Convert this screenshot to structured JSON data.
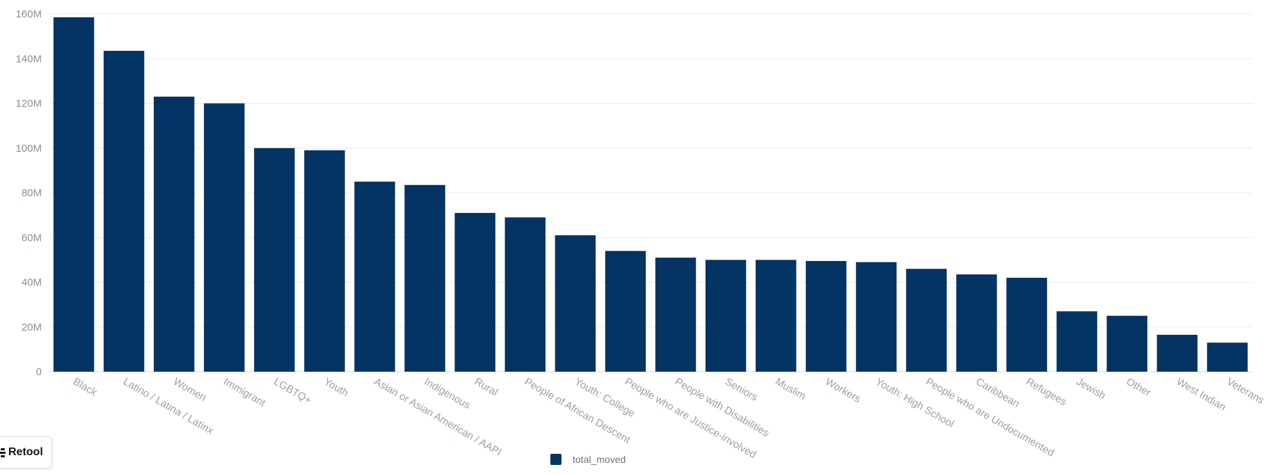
{
  "colors": {
    "bar": "#043463",
    "grid": "#ececec",
    "tick_text": "#8a8f98"
  },
  "badge": {
    "label": "Retool",
    "icon": "retool-logo-icon"
  },
  "chart_data": {
    "type": "bar",
    "title": "",
    "xlabel": "",
    "ylabel": "",
    "ylim": [
      0,
      160000000
    ],
    "yticks": [
      0,
      20000000,
      40000000,
      60000000,
      80000000,
      100000000,
      120000000,
      140000000,
      160000000
    ],
    "ytick_labels": [
      "0",
      "20M",
      "40M",
      "60M",
      "80M",
      "100M",
      "120M",
      "140M",
      "160M"
    ],
    "grid": true,
    "legend_position": "bottom-center",
    "categories": [
      "Black",
      "Latino / Latina / Latinx",
      "Women",
      "Immigrant",
      "LGBTQ+",
      "Youth",
      "Asian or Asian American / AAPI",
      "Indigenous",
      "Rural",
      "People of African Descent",
      "Youth: College",
      "People who are Justice-involved",
      "People with Disabilities",
      "Seniors",
      "Muslim",
      "Workers",
      "Youth: High School",
      "People who are Undocumented",
      "Caribbean",
      "Refugees",
      "Jewish",
      "Other",
      "West Indian",
      "Veterans"
    ],
    "series": [
      {
        "name": "total_moved",
        "values": [
          158500000,
          143500000,
          123000000,
          120000000,
          100000000,
          99000000,
          85000000,
          83500000,
          71000000,
          69000000,
          61000000,
          54000000,
          51000000,
          50000000,
          50000000,
          49500000,
          49000000,
          46000000,
          43500000,
          42000000,
          27000000,
          25000000,
          16500000,
          13000000
        ]
      }
    ]
  }
}
